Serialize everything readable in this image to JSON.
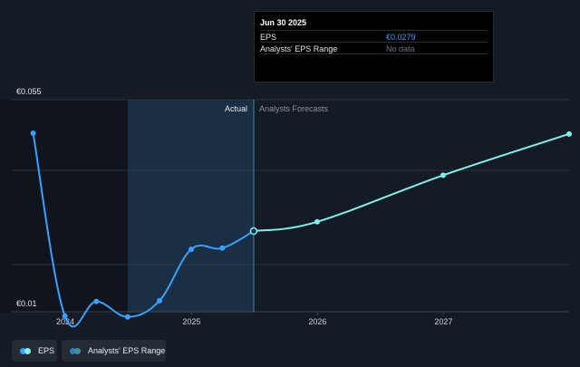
{
  "chart_data": {
    "type": "line",
    "ylim": [
      0.01,
      0.055
    ],
    "y_labels": [
      "€0.055",
      "€0.01"
    ],
    "x_ticks": [
      {
        "label": "2024",
        "date": "2024-01-01"
      },
      {
        "label": "2025",
        "date": "2025-01-01"
      },
      {
        "label": "2026",
        "date": "2026-01-01"
      },
      {
        "label": "2027",
        "date": "2027-01-01"
      }
    ],
    "regions": {
      "actual_label": "Actual",
      "forecast_label": "Analysts Forecasts"
    },
    "series": [
      {
        "name": "EPS",
        "color": "#3aa0ff",
        "points": [
          {
            "x": "2023-09-30",
            "y": 0.0521
          },
          {
            "x": "2023-12-31",
            "y": 0.0069
          },
          {
            "x": "2024-03-31",
            "y": 0.0105
          },
          {
            "x": "2024-06-30",
            "y": 0.0067
          },
          {
            "x": "2024-09-30",
            "y": 0.0107
          },
          {
            "x": "2024-12-31",
            "y": 0.0234
          },
          {
            "x": "2025-03-31",
            "y": 0.0237
          },
          {
            "x": "2025-06-30",
            "y": 0.0279
          }
        ]
      },
      {
        "name": "EPS Forecast",
        "color": "#7ff0ee",
        "points": [
          {
            "x": "2025-06-30",
            "y": 0.0279
          },
          {
            "x": "2025-12-31",
            "y": 0.0302
          },
          {
            "x": "2026-12-31",
            "y": 0.0417
          },
          {
            "x": "2027-12-31",
            "y": 0.0519
          }
        ]
      }
    ]
  },
  "tooltip": {
    "title": "Jun 30 2025",
    "rows": [
      {
        "label": "EPS",
        "value": "€0.0279"
      },
      {
        "label": "Analysts' EPS Range",
        "value": "No data"
      }
    ]
  },
  "legend": {
    "eps": {
      "label": "EPS",
      "colors": [
        "#3aa0ff",
        "#7ff0ee"
      ]
    },
    "range": {
      "label": "Analysts' EPS Range",
      "colors": [
        "#2e7fb8",
        "#3f8f9a"
      ]
    }
  },
  "colors": {
    "background": "#151b24",
    "past_shade": "#10151d",
    "highlight": "#1b2f44",
    "grid": "#2c333d",
    "actual_text": "#e6eaf0",
    "forecast_text": "#8a929d"
  }
}
